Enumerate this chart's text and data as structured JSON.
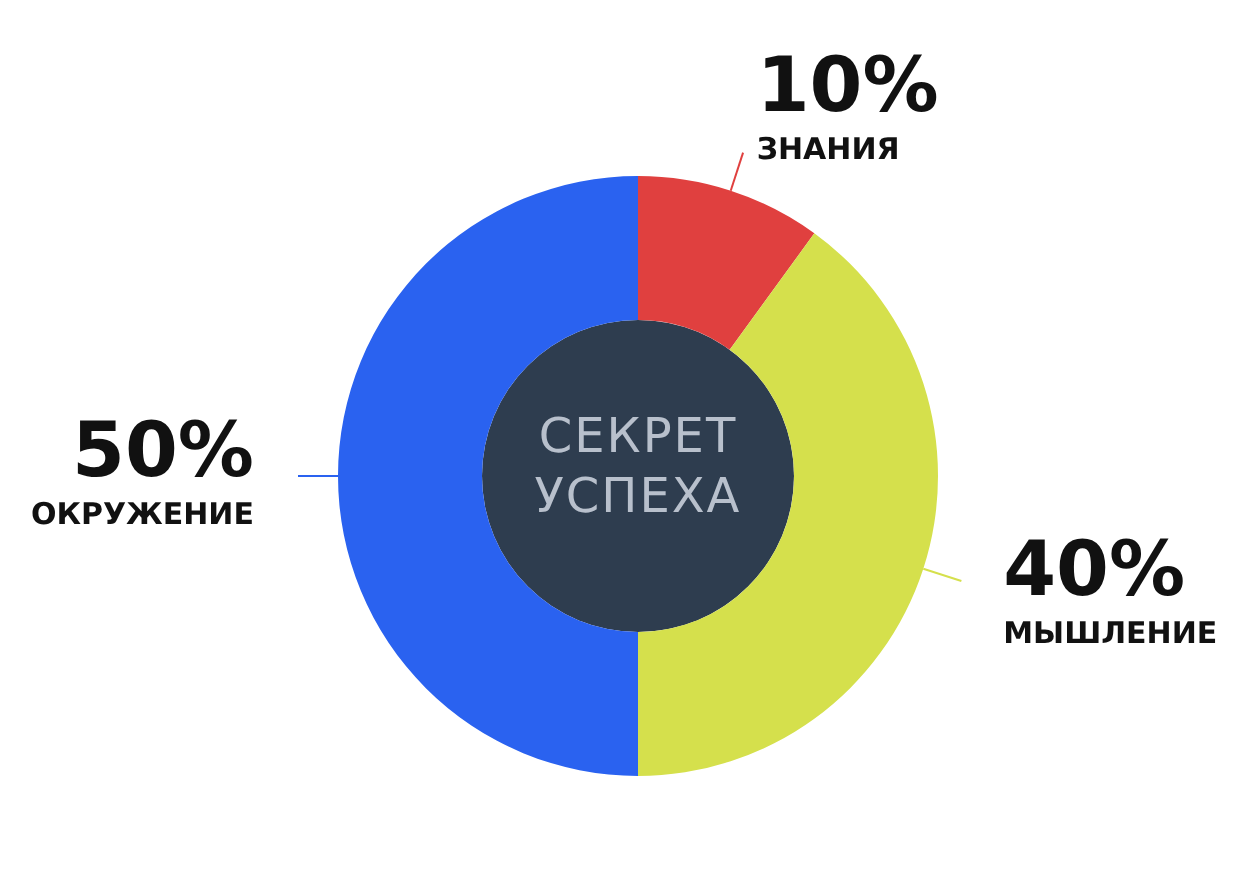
{
  "chart_data": {
    "type": "donut",
    "title": "СЕКРЕТ УСПЕХА",
    "categories": [
      "ЗНАНИЯ",
      "МЫШЛЕНИЕ",
      "ОКРУЖЕНИЕ"
    ],
    "values": [
      10,
      40,
      50
    ],
    "value_labels": [
      "10%",
      "40%",
      "50%"
    ],
    "colors": [
      "#e0403f",
      "#d5e04c",
      "#2a62f0"
    ]
  }
}
